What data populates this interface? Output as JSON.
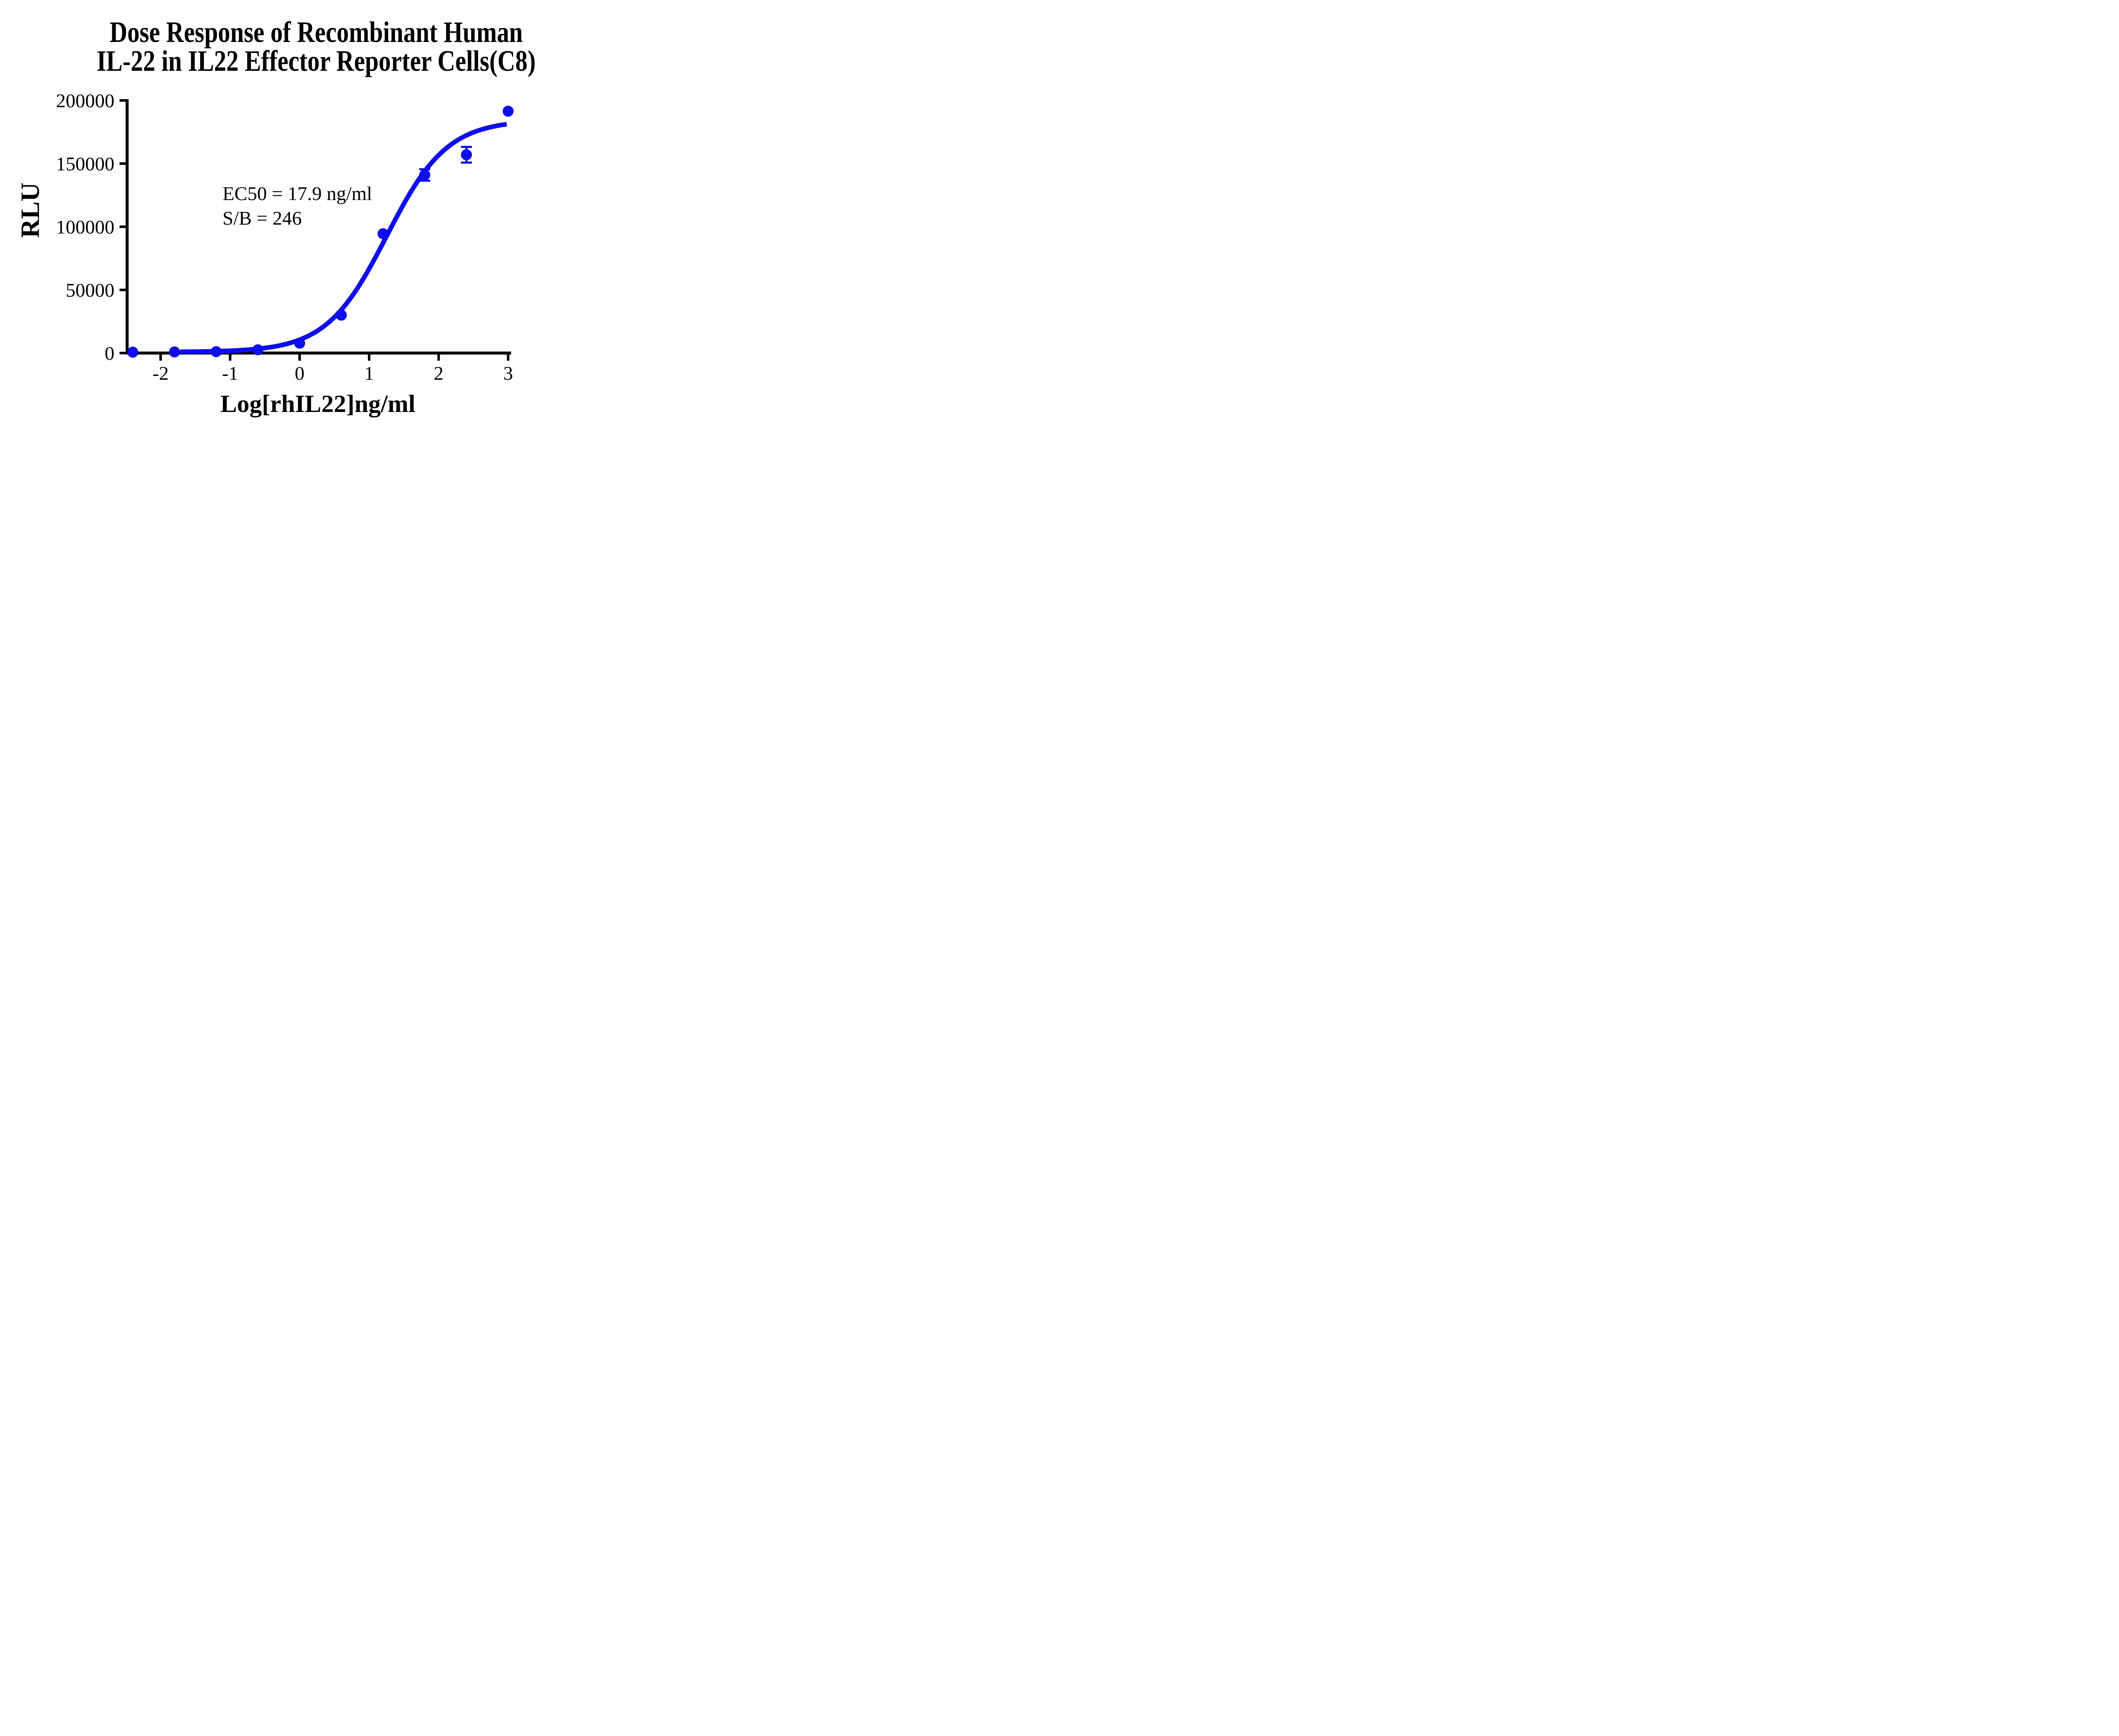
{
  "chart_data": {
    "type": "scatter",
    "title_lines": [
      "Dose Response of Recombinant Human",
      "IL-22 in IL22 Effector Reporter Cells(C8)"
    ],
    "xlabel": "Log[rhIL22]ng/ml",
    "ylabel": "RLU",
    "annotation_lines": [
      "EC50 = 17.9 ng/ml",
      "S/B = 246"
    ],
    "series_color": "#0d0df0",
    "axis_color": "#000000",
    "background_color": "#ffffff",
    "xlim": [
      -2.48,
      3.05
    ],
    "ylim": [
      0,
      200000
    ],
    "grid": false,
    "legend": false,
    "x_ticks": [
      {
        "value": -2,
        "label": "-2"
      },
      {
        "value": -1,
        "label": "-1"
      },
      {
        "value": 0,
        "label": "0"
      },
      {
        "value": 1,
        "label": "1"
      },
      {
        "value": 2,
        "label": "2"
      },
      {
        "value": 3,
        "label": "3"
      }
    ],
    "y_ticks": [
      {
        "value": 0,
        "label": "0"
      },
      {
        "value": 50000,
        "label": "50000"
      },
      {
        "value": 100000,
        "label": "100000"
      },
      {
        "value": 150000,
        "label": "150000"
      },
      {
        "value": 200000,
        "label": "200000"
      }
    ],
    "points": [
      {
        "x": -2.4,
        "y": 700
      },
      {
        "x": -1.8,
        "y": 900
      },
      {
        "x": -1.2,
        "y": 1100
      },
      {
        "x": -0.6,
        "y": 2600
      },
      {
        "x": 0.0,
        "y": 7800
      },
      {
        "x": 0.6,
        "y": 30000
      },
      {
        "x": 1.2,
        "y": 94500
      },
      {
        "x": 1.8,
        "y": 141000,
        "err": 4500
      },
      {
        "x": 2.4,
        "y": 157000,
        "err": 6200
      },
      {
        "x": 3.0,
        "y": 191500
      }
    ],
    "fit_curve": {
      "model": "4PL",
      "bottom": 800,
      "top": 184600,
      "log_ec50": 1.2529,
      "hill": 1.0,
      "x_start": -1.72,
      "x_end": 3.0
    }
  }
}
